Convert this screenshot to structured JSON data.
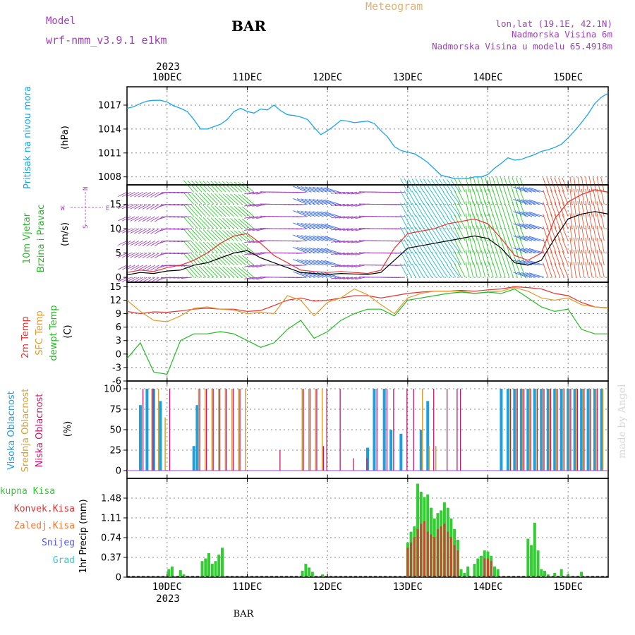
{
  "header": {
    "model_label": "Model",
    "model_name": "wrf-nmm_v3.9.1  e1km",
    "station": "BAR",
    "meteogram_label": "Meteogram",
    "coords": "lon,lat (19.1E, 42.1N)",
    "altitude": "Nadmorska Visina 6m",
    "model_altitude": "Nadmorska Visina u modelu 65.4918m",
    "watermark": "made by Angel"
  },
  "colors": {
    "pressure": "#1aa6e8",
    "t2m": "#e8322d",
    "sfc": "#e09b2a",
    "dew": "#22bb22",
    "high_cloud": "#1a9fe0",
    "mid_cloud": "#d4a030",
    "low_cloud": "#c0186c",
    "total_precip": "#33cc33",
    "conv_precip": "#dd3333",
    "frozen_precip": "#ee7733",
    "snow": "#5555dd",
    "graupel": "#33cccc",
    "wind_label": "#22bb22",
    "purple": "#a040c0"
  },
  "chart_data": {
    "type": "line",
    "x_axis": {
      "top_year": "2023",
      "bottom_year": "2023",
      "bottom_label": "BAR",
      "day_labels": [
        "10DEC",
        "11DEC",
        "12DEC",
        "13DEC",
        "14DEC",
        "15DEC"
      ],
      "range_hours": [
        -12,
        132
      ]
    },
    "panels": {
      "pressure": {
        "label": "Pritisak na nivou mora",
        "unit": "(hPa)",
        "yticks": [
          "1017",
          "1014",
          "1011",
          "1008"
        ],
        "ylim": [
          1007,
          1019.3
        ],
        "x": [
          -12,
          -10,
          -8,
          -6,
          -4,
          -2,
          0,
          2,
          4,
          6,
          8,
          10,
          12,
          14,
          16,
          18,
          20,
          22,
          24,
          26,
          28,
          30,
          32,
          34,
          36,
          38,
          40,
          42,
          44,
          46,
          48,
          50,
          52,
          54,
          56,
          58,
          60,
          62,
          64,
          66,
          68,
          70,
          72,
          74,
          76,
          78,
          80,
          82,
          84,
          86,
          88,
          90,
          92,
          94,
          96,
          98,
          100,
          102,
          104,
          106,
          108,
          110,
          112,
          114,
          116,
          118,
          120,
          122,
          124,
          126,
          128,
          130,
          132
        ],
        "values": [
          1016.6,
          1016.8,
          1017.2,
          1017.5,
          1017.6,
          1017.6,
          1017.4,
          1016.9,
          1016.6,
          1016.2,
          1015.2,
          1014.0,
          1014.0,
          1014.3,
          1014.6,
          1015.2,
          1016.2,
          1016.6,
          1016.2,
          1016.0,
          1016.5,
          1016.4,
          1017.0,
          1016.3,
          1015.8,
          1015.7,
          1015.5,
          1015.2,
          1014.2,
          1013.3,
          1013.8,
          1014.4,
          1015.1,
          1015.0,
          1014.8,
          1014.9,
          1015.0,
          1014.7,
          1013.8,
          1013.0,
          1011.8,
          1011.3,
          1011.1,
          1010.9,
          1010.4,
          1009.8,
          1009.0,
          1008.2,
          1008.0,
          1007.8,
          1007.8,
          1007.8,
          1008.0,
          1008.0,
          1008.3,
          1009.1,
          1009.7,
          1010.4,
          1010.1,
          1010.2,
          1010.5,
          1010.8,
          1011.2,
          1011.4,
          1011.7,
          1012.1,
          1012.9,
          1013.8,
          1014.8,
          1015.9,
          1017.2,
          1018.0,
          1018.5
        ]
      },
      "wind": {
        "label1": "10m Vjetar",
        "label2": "Brzina i Pravac",
        "unit": "(m/s)",
        "compass": [
          "N",
          "W",
          "E",
          "S"
        ],
        "yticks": [
          "15",
          "10",
          "5",
          "0"
        ],
        "ylim": [
          -1,
          19
        ],
        "x": [
          -12,
          -8,
          -4,
          0,
          4,
          8,
          12,
          16,
          20,
          24,
          28,
          32,
          36,
          40,
          44,
          48,
          52,
          56,
          60,
          64,
          68,
          72,
          76,
          80,
          84,
          88,
          92,
          96,
          100,
          104,
          108,
          112,
          116,
          120,
          124,
          128,
          132
        ],
        "speed": [
          0.5,
          1.0,
          0.8,
          1.3,
          1.5,
          2.5,
          3.0,
          4.0,
          5.0,
          5.5,
          4.0,
          3.0,
          2.0,
          1.0,
          0.8,
          0.6,
          0.8,
          0.7,
          0.6,
          1.0,
          3.5,
          6.0,
          6.5,
          7.0,
          7.5,
          8.0,
          8.5,
          8.0,
          6.0,
          3.0,
          2.5,
          3.5,
          8.0,
          12.0,
          13.0,
          13.5,
          13.0
        ],
        "gust": [
          1.0,
          1.5,
          1.2,
          2.0,
          2.5,
          3.5,
          5.0,
          7.0,
          8.5,
          9.0,
          7.0,
          4.5,
          3.0,
          1.5,
          1.2,
          1.0,
          1.2,
          1.0,
          0.8,
          1.5,
          6.0,
          9.0,
          9.5,
          10.0,
          11.0,
          11.5,
          12.0,
          11.0,
          8.0,
          4.5,
          3.5,
          5.0,
          12.0,
          15.5,
          17.0,
          18.0,
          17.5
        ]
      },
      "temperature": {
        "label1": "2m Temp",
        "label2": "SFC Temp",
        "label3": "dewpt Temp",
        "unit": "(C)",
        "yticks": [
          "15",
          "12",
          "9",
          "6",
          "3",
          "0",
          "-3",
          "-6"
        ],
        "ylim": [
          -6,
          16
        ],
        "x": [
          -12,
          -8,
          -4,
          0,
          4,
          8,
          12,
          16,
          20,
          24,
          28,
          32,
          36,
          40,
          44,
          48,
          52,
          56,
          60,
          64,
          68,
          72,
          76,
          80,
          84,
          88,
          92,
          96,
          100,
          104,
          108,
          112,
          116,
          120,
          124,
          128,
          132
        ],
        "t2m": [
          9.5,
          9.0,
          9.4,
          9.3,
          9.6,
          10.0,
          10.2,
          10.0,
          10.0,
          9.5,
          9.7,
          10.8,
          12.0,
          12.5,
          11.8,
          12.0,
          12.5,
          13.0,
          13.0,
          12.5,
          13.0,
          13.5,
          13.8,
          14.0,
          14.0,
          14.2,
          14.0,
          14.3,
          14.5,
          15.0,
          14.8,
          14.5,
          13.5,
          13.0,
          11.5,
          10.5,
          10.3
        ],
        "sfc": [
          12.0,
          9.5,
          7.5,
          7.2,
          8.5,
          10.2,
          10.5,
          10.0,
          9.8,
          9.0,
          9.3,
          9.0,
          13.0,
          12.0,
          8.5,
          11.5,
          12.5,
          14.5,
          13.2,
          11.0,
          9.0,
          12.5,
          13.5,
          14.0,
          14.0,
          14.0,
          13.5,
          13.8,
          14.0,
          14.8,
          14.0,
          12.5,
          12.0,
          12.5,
          11.0,
          10.5,
          10.2
        ],
        "dew": [
          -1.0,
          2.5,
          -4.0,
          -4.5,
          3.0,
          4.5,
          4.5,
          5.0,
          4.5,
          3.0,
          1.5,
          2.5,
          5.5,
          7.5,
          3.5,
          5.0,
          7.5,
          9.0,
          10.0,
          10.0,
          8.5,
          12.0,
          12.5,
          13.0,
          13.5,
          13.8,
          13.5,
          13.8,
          13.5,
          14.5,
          12.5,
          10.5,
          9.5,
          10.0,
          5.5,
          4.5,
          4.5
        ]
      },
      "clouds": {
        "label1": "Visoka Oblacnost",
        "label2": "Srednja Oblacnost",
        "label3": "Niska Oblacnost",
        "unit": "(%)",
        "yticks": [
          "100",
          "75",
          "50",
          "25",
          "0"
        ],
        "ylim": [
          0,
          100
        ],
        "high": [
          [
            -8,
            80
          ],
          [
            -6,
            100
          ],
          [
            -4,
            100
          ],
          [
            -2,
            85
          ],
          [
            8,
            30
          ],
          [
            9,
            80
          ],
          [
            60,
            28
          ],
          [
            62,
            100
          ],
          [
            65,
            100
          ],
          [
            67,
            50
          ],
          [
            70,
            45
          ],
          [
            76,
            50
          ],
          [
            78,
            85
          ],
          [
            100,
            100
          ],
          [
            102,
            100
          ],
          [
            104,
            100
          ],
          [
            106,
            100
          ],
          [
            108,
            100
          ],
          [
            110,
            100
          ],
          [
            112,
            100
          ],
          [
            114,
            100
          ],
          [
            116,
            100
          ],
          [
            118,
            100
          ],
          [
            120,
            100
          ],
          [
            122,
            100
          ],
          [
            124,
            100
          ],
          [
            126,
            100
          ],
          [
            128,
            100
          ],
          [
            130,
            100
          ]
        ],
        "mid": [
          [
            -5,
            100
          ],
          [
            -3,
            100
          ],
          [
            -1,
            65
          ],
          [
            9,
            100
          ],
          [
            11,
            100
          ],
          [
            13,
            100
          ],
          [
            15,
            100
          ],
          [
            17,
            100
          ],
          [
            19,
            100
          ],
          [
            21,
            100
          ],
          [
            23,
            100
          ],
          [
            40,
            100
          ],
          [
            42,
            100
          ],
          [
            44,
            100
          ],
          [
            46,
            100
          ],
          [
            76,
            100
          ],
          [
            78,
            30
          ],
          [
            80,
            30
          ],
          [
            102,
            100
          ],
          [
            104,
            100
          ],
          [
            106,
            100
          ],
          [
            108,
            100
          ],
          [
            110,
            100
          ],
          [
            112,
            100
          ],
          [
            114,
            100
          ],
          [
            116,
            100
          ],
          [
            118,
            100
          ],
          [
            120,
            100
          ],
          [
            122,
            100
          ],
          [
            124,
            100
          ],
          [
            126,
            100
          ],
          [
            128,
            100
          ],
          [
            130,
            100
          ]
        ],
        "low": [
          [
            -7,
            100
          ],
          [
            -4,
            100
          ],
          [
            1,
            100
          ],
          [
            10,
            100
          ],
          [
            12,
            100
          ],
          [
            14,
            100
          ],
          [
            16,
            100
          ],
          [
            18,
            100
          ],
          [
            20,
            100
          ],
          [
            22,
            100
          ],
          [
            34,
            25
          ],
          [
            41,
            100
          ],
          [
            43,
            100
          ],
          [
            45,
            100
          ],
          [
            47,
            30
          ],
          [
            48,
            100
          ],
          [
            52,
            100
          ],
          [
            56,
            15
          ],
          [
            60,
            15
          ],
          [
            63,
            100
          ],
          [
            66,
            100
          ],
          [
            68,
            100
          ],
          [
            72,
            100
          ],
          [
            74,
            100
          ],
          [
            80,
            100
          ],
          [
            84,
            100
          ],
          [
            87,
            100
          ],
          [
            88,
            100
          ],
          [
            103,
            100
          ],
          [
            105,
            100
          ],
          [
            107,
            100
          ],
          [
            109,
            100
          ],
          [
            111,
            100
          ],
          [
            113,
            100
          ],
          [
            115,
            100
          ],
          [
            117,
            100
          ],
          [
            119,
            100
          ],
          [
            121,
            100
          ],
          [
            123,
            100
          ],
          [
            125,
            100
          ],
          [
            127,
            100
          ],
          [
            129,
            100
          ]
        ]
      },
      "precip": {
        "label1": "Ukupna Kisa",
        "label2": "Konvek.Kisa",
        "label3": "Zaledj.Kisa",
        "label4": "Snijeg",
        "label5": "Grad",
        "unit": "1hr Precip (mm)",
        "yticks": [
          "1.48",
          "1.11",
          "0.74",
          "0.37",
          "0"
        ],
        "ylim": [
          0,
          1.48
        ],
        "total": [
          [
            0.5,
            0.15
          ],
          [
            1.5,
            0.2
          ],
          [
            4,
            0.13
          ],
          [
            5,
            0.05
          ],
          [
            10.5,
            0.3
          ],
          [
            11.5,
            0.35
          ],
          [
            12.5,
            0.45
          ],
          [
            13.5,
            0.25
          ],
          [
            14.5,
            0.3
          ],
          [
            15.5,
            0.42
          ],
          [
            16.5,
            0.55
          ],
          [
            40.5,
            0.12
          ],
          [
            41.5,
            0.25
          ],
          [
            42.5,
            0.18
          ],
          [
            43.5,
            0.1
          ],
          [
            46.5,
            0.05
          ],
          [
            72,
            0.65
          ],
          [
            73,
            0.85
          ],
          [
            74,
            0.95
          ],
          [
            75,
            1.75
          ],
          [
            76,
            1.6
          ],
          [
            77,
            1.5
          ],
          [
            78,
            1.55
          ],
          [
            79,
            1.3
          ],
          [
            80,
            1.1
          ],
          [
            81,
            1.2
          ],
          [
            82,
            1.25
          ],
          [
            83,
            1.4
          ],
          [
            84,
            1.3
          ],
          [
            85,
            1.1
          ],
          [
            86,
            0.9
          ],
          [
            87,
            0.7
          ],
          [
            88,
            0.15
          ],
          [
            89,
            0.08
          ],
          [
            90,
            0.2
          ],
          [
            92,
            0.25
          ],
          [
            93,
            0.35
          ],
          [
            94,
            0.4
          ],
          [
            95,
            0.5
          ],
          [
            96,
            0.48
          ],
          [
            97,
            0.4
          ],
          [
            98,
            0.2
          ],
          [
            99,
            0.15
          ],
          [
            108,
            0.72
          ],
          [
            109,
            0.6
          ],
          [
            110,
            1.02
          ],
          [
            111,
            0.5
          ],
          [
            112,
            0.15
          ],
          [
            113,
            0.12
          ],
          [
            114,
            0.05
          ],
          [
            116,
            0.08
          ],
          [
            118,
            0.15
          ],
          [
            120,
            0.05
          ],
          [
            124,
            0.1
          ]
        ],
        "convective": [
          [
            72,
            0.55
          ],
          [
            73,
            0.65
          ],
          [
            74,
            0.75
          ],
          [
            75,
            0.9
          ],
          [
            76,
            1.0
          ],
          [
            77,
            1.05
          ],
          [
            78,
            0.85
          ],
          [
            79,
            0.8
          ],
          [
            80,
            0.75
          ],
          [
            81,
            0.9
          ],
          [
            82,
            0.95
          ],
          [
            83,
            1.0
          ],
          [
            84,
            0.85
          ],
          [
            85,
            0.75
          ],
          [
            86,
            0.6
          ],
          [
            87,
            0.5
          ],
          [
            95,
            0.35
          ],
          [
            96,
            0.35
          ],
          [
            97,
            0.3
          ]
        ]
      }
    }
  }
}
